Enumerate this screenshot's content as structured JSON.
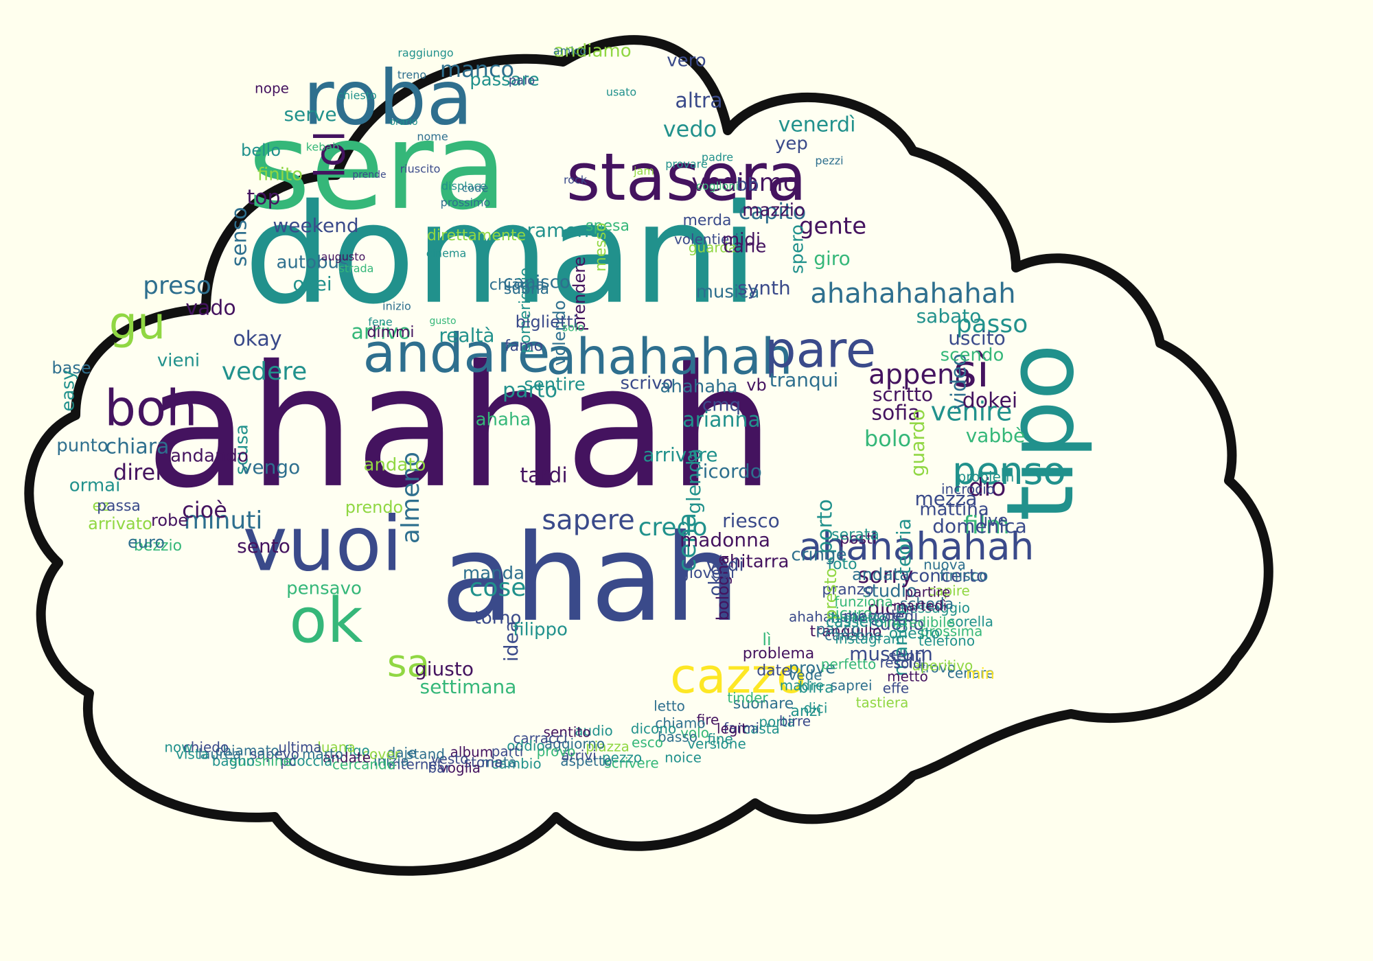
{
  "palette": {
    "background": "#ffffee",
    "outline": "#111111",
    "fill": "#fffff2",
    "d1": "#44135f",
    "d2": "#3a4a8a",
    "d3": "#2e6f8e",
    "d4": "#21918c",
    "d5": "#35b779",
    "d6": "#90d743",
    "d7": "#fde725"
  },
  "words": [
    {
      "text": "ahahah",
      "c": "d1"
    },
    {
      "text": "domani",
      "c": "d4"
    },
    {
      "text": "sera",
      "c": "d5"
    },
    {
      "text": "ahah",
      "c": "d2"
    },
    {
      "text": "tipo",
      "c": "d4"
    },
    {
      "text": "roba",
      "c": "d3"
    },
    {
      "text": "stasera",
      "c": "d1"
    },
    {
      "text": "andare",
      "c": "d3"
    },
    {
      "text": "ahahahah",
      "c": "d3"
    },
    {
      "text": "vuoi",
      "c": "d2"
    },
    {
      "text": "ok",
      "c": "d5"
    },
    {
      "text": "cazzo",
      "c": "d7"
    },
    {
      "text": "boh",
      "c": "d1"
    },
    {
      "text": "gu",
      "c": "d6"
    },
    {
      "text": "pare",
      "c": "d2"
    },
    {
      "text": "sì",
      "c": "d1"
    },
    {
      "text": "penso",
      "c": "d4"
    },
    {
      "text": "ahahahahah",
      "c": "d2"
    },
    {
      "text": "lol",
      "c": "d1"
    },
    {
      "text": "sa",
      "c": "d6"
    },
    {
      "text": "ahahahahahah",
      "c": "d3"
    },
    {
      "text": "appena",
      "c": "d1"
    },
    {
      "text": "vediamo",
      "c": "d1"
    },
    {
      "text": "capito",
      "c": "d3"
    },
    {
      "text": "veramente",
      "c": "d4"
    },
    {
      "text": "vedere",
      "c": "d4"
    },
    {
      "text": "manco",
      "c": "d3"
    },
    {
      "text": "preso",
      "c": "d3"
    },
    {
      "text": "chiara",
      "c": "d3"
    },
    {
      "text": "direi",
      "c": "d1"
    },
    {
      "text": "credo",
      "c": "d4"
    },
    {
      "text": "cena",
      "c": "d4"
    },
    {
      "text": "sapere",
      "c": "d2"
    },
    {
      "text": "almeno",
      "c": "d3"
    },
    {
      "text": "cose",
      "c": "d4"
    },
    {
      "text": "minuti",
      "c": "d3"
    },
    {
      "text": "venire",
      "c": "d4"
    },
    {
      "text": "passo",
      "c": "d4"
    },
    {
      "text": "dio",
      "c": "d1"
    },
    {
      "text": "film",
      "c": "d5"
    },
    {
      "text": "video",
      "c": "d3"
    },
    {
      "text": "scritto",
      "c": "d1"
    },
    {
      "text": "sofia",
      "c": "d1"
    },
    {
      "text": "bolo",
      "c": "d5"
    },
    {
      "text": "gente",
      "c": "d1"
    },
    {
      "text": "senso",
      "c": "d3"
    },
    {
      "text": "top",
      "c": "d1"
    },
    {
      "text": "okay",
      "c": "d2"
    },
    {
      "text": "vado",
      "c": "d1"
    },
    {
      "text": "cioè",
      "c": "d1"
    },
    {
      "text": "museum",
      "c": "d2"
    },
    {
      "text": "giusto",
      "c": "d1"
    },
    {
      "text": "settimana",
      "c": "d5"
    },
    {
      "text": "idea",
      "c": "d2"
    },
    {
      "text": "torno",
      "c": "d2"
    },
    {
      "text": "dico",
      "c": "d1"
    },
    {
      "text": "sorry",
      "c": "d1"
    },
    {
      "text": "teoria",
      "c": "d4"
    },
    {
      "text": "riesco",
      "c": "d2"
    },
    {
      "text": "madonna",
      "c": "d1"
    },
    {
      "text": "tardi",
      "c": "d1"
    },
    {
      "text": "ricordo",
      "c": "d3"
    },
    {
      "text": "arianna",
      "c": "d4"
    },
    {
      "text": "parto",
      "c": "d4"
    },
    {
      "text": "arrivo",
      "c": "d5"
    },
    {
      "text": "realtà",
      "c": "d4"
    },
    {
      "text": "capisco",
      "c": "d3"
    },
    {
      "text": "musica",
      "c": "d3"
    },
    {
      "text": "vedo",
      "c": "d4"
    },
    {
      "text": "altra",
      "c": "d2"
    },
    {
      "text": "venerdì",
      "c": "d4"
    },
    {
      "text": "yep",
      "c": "d2"
    },
    {
      "text": "mazzio",
      "c": "d1"
    },
    {
      "text": "passare",
      "c": "d4"
    },
    {
      "text": "vero",
      "c": "d2"
    },
    {
      "text": "andiamo",
      "c": "d6"
    },
    {
      "text": "serve",
      "c": "d4"
    },
    {
      "text": "weekend",
      "c": "d2"
    },
    {
      "text": "autobus",
      "c": "d3"
    },
    {
      "text": "okei",
      "c": "d4"
    },
    {
      "text": "sabato",
      "c": "d4"
    },
    {
      "text": "scendo",
      "c": "d5"
    },
    {
      "text": "uscito",
      "c": "d2"
    },
    {
      "text": "vabbè",
      "c": "d5"
    },
    {
      "text": "domenica",
      "c": "d2"
    },
    {
      "text": "mattina",
      "c": "d2"
    },
    {
      "text": "porto",
      "c": "d4"
    },
    {
      "text": "guardo",
      "c": "d6"
    },
    {
      "text": "tranqui",
      "c": "d3"
    },
    {
      "text": "sentire",
      "c": "d4"
    },
    {
      "text": "ahaha",
      "c": "d5"
    },
    {
      "text": "vieni",
      "c": "d4"
    },
    {
      "text": "base",
      "c": "d3"
    },
    {
      "text": "easy",
      "c": "d4"
    },
    {
      "text": "punto",
      "c": "d3"
    },
    {
      "text": "ormai",
      "c": "d4"
    },
    {
      "text": "finito",
      "c": "d6"
    },
    {
      "text": "bello",
      "c": "d4"
    },
    {
      "text": "nope",
      "c": "d1"
    },
    {
      "text": "giro",
      "c": "d5"
    },
    {
      "text": "spero",
      "c": "d4"
    },
    {
      "text": "synth",
      "c": "d2"
    },
    {
      "text": "pensavo",
      "c": "d5"
    },
    {
      "text": "sento",
      "c": "d1"
    },
    {
      "text": "scusa",
      "c": "d4"
    },
    {
      "text": "vengo",
      "c": "d3"
    },
    {
      "text": "andando",
      "c": "d1"
    },
    {
      "text": "concerto",
      "c": "d2"
    },
    {
      "text": "studio",
      "c": "d3"
    },
    {
      "text": "suono",
      "c": "d2"
    },
    {
      "text": "mando",
      "c": "d4"
    },
    {
      "text": "glenda",
      "c": "d4"
    },
    {
      "text": "arrivare",
      "c": "d4"
    },
    {
      "text": "chitarra",
      "c": "d1"
    },
    {
      "text": "vedi",
      "c": "d2"
    },
    {
      "text": "cringe",
      "c": "d3"
    },
    {
      "text": "mezza",
      "c": "d2"
    },
    {
      "text": "problem",
      "c": "d4"
    },
    {
      "text": "dokei",
      "c": "d1"
    },
    {
      "text": "live",
      "c": "d2"
    },
    {
      "text": "incrocio",
      "c": "d2"
    },
    {
      "text": "manda",
      "c": "d3"
    },
    {
      "text": "filippo",
      "c": "d4"
    },
    {
      "text": "prendere",
      "c": "d1"
    },
    {
      "text": "direttamente",
      "c": "d6"
    },
    {
      "text": "volendo",
      "c": "d3"
    },
    {
      "text": "pomeriggio",
      "c": "d4"
    },
    {
      "text": "biglietti",
      "c": "d2"
    },
    {
      "text": "suona",
      "c": "d3"
    },
    {
      "text": "dimmi",
      "c": "d1"
    },
    {
      "text": "famo",
      "c": "d2"
    },
    {
      "text": "chiama",
      "c": "d3"
    },
    {
      "text": "spesa",
      "c": "d5"
    },
    {
      "text": "messo",
      "c": "d6"
    },
    {
      "text": "guarda",
      "c": "d6"
    },
    {
      "text": "cane",
      "c": "d1"
    },
    {
      "text": "volentieri",
      "c": "d2"
    },
    {
      "text": "midi",
      "c": "d1"
    },
    {
      "text": "merda",
      "c": "d2"
    },
    {
      "text": "bb",
      "c": "d2"
    },
    {
      "text": "vb",
      "c": "d1"
    },
    {
      "text": "cmq",
      "c": "d2"
    },
    {
      "text": "scrivo",
      "c": "d2"
    },
    {
      "text": "ahahaha",
      "c": "d3"
    },
    {
      "text": "okok",
      "c": "d2"
    },
    {
      "text": "bologna",
      "c": "d1"
    },
    {
      "text": "andato",
      "c": "d6"
    },
    {
      "text": "prendo",
      "c": "d6"
    },
    {
      "text": "giovedì",
      "c": "d2"
    },
    {
      "text": "bezzio",
      "c": "d5"
    },
    {
      "text": "euro",
      "c": "d3"
    },
    {
      "text": "robe",
      "c": "d1"
    },
    {
      "text": "ez",
      "c": "d6"
    },
    {
      "text": "passa",
      "c": "d2"
    },
    {
      "text": "arrivato",
      "c": "d6"
    },
    {
      "text": "posti",
      "c": "d1"
    },
    {
      "text": "serata",
      "c": "d4"
    },
    {
      "text": "foto",
      "c": "d4"
    },
    {
      "text": "pranzo",
      "c": "d2"
    },
    {
      "text": "andata",
      "c": "d3"
    },
    {
      "text": "lì",
      "c": "d5"
    },
    {
      "text": "problema",
      "c": "d1"
    },
    {
      "text": "date",
      "c": "d2"
    },
    {
      "text": "prove",
      "c": "d3"
    },
    {
      "text": "voce",
      "c": "d2"
    },
    {
      "text": "ahahahaha",
      "c": "d2"
    },
    {
      "text": "sicuro",
      "c": "d5"
    },
    {
      "text": "tranquillo",
      "c": "d1"
    },
    {
      "text": "presto",
      "c": "d6"
    },
    {
      "text": "pacco",
      "c": "d3"
    },
    {
      "text": "senti",
      "c": "d2"
    },
    {
      "text": "telefono",
      "c": "d4"
    },
    {
      "text": "prossima",
      "c": "d5"
    },
    {
      "text": "sorella",
      "c": "d4"
    },
    {
      "text": "capire",
      "c": "d6"
    },
    {
      "text": "finisco",
      "c": "d3"
    },
    {
      "text": "nuova",
      "c": "d3"
    },
    {
      "text": "partire",
      "c": "d1"
    },
    {
      "text": "messaggio",
      "c": "d4"
    },
    {
      "text": "scheda",
      "c": "d3"
    },
    {
      "text": "incredibile",
      "c": "d5"
    },
    {
      "text": "martedì",
      "c": "d1"
    },
    {
      "text": "mercoledì",
      "c": "d2"
    },
    {
      "text": "cassero",
      "c": "d4"
    },
    {
      "text": "funziona",
      "c": "d5"
    },
    {
      "text": "biglietto",
      "c": "d4"
    },
    {
      "text": "canzone",
      "c": "d3"
    },
    {
      "text": "instagram",
      "c": "d4"
    },
    {
      "text": "trovo",
      "c": "d3"
    },
    {
      "text": "aperitivo",
      "c": "d6"
    },
    {
      "text": "cenare",
      "c": "d3"
    },
    {
      "text": "min",
      "c": "d7"
    },
    {
      "text": "onesto",
      "c": "d4"
    },
    {
      "text": "metto",
      "c": "d1"
    },
    {
      "text": "resci",
      "c": "d2"
    },
    {
      "text": "soldi",
      "c": "d2"
    },
    {
      "text": "effe",
      "c": "d2"
    },
    {
      "text": "tastiera",
      "c": "d6"
    },
    {
      "text": "saprei",
      "c": "d3"
    },
    {
      "text": "perfetto",
      "c": "d5"
    },
    {
      "text": "birra",
      "c": "d4"
    },
    {
      "text": "anzi",
      "c": "d4"
    },
    {
      "text": "dici",
      "c": "d4"
    },
    {
      "text": "madre",
      "c": "d4"
    },
    {
      "text": "vede",
      "c": "d3"
    },
    {
      "text": "suonare",
      "c": "d3"
    },
    {
      "text": "tinder",
      "c": "d5"
    },
    {
      "text": "porta",
      "c": "d4"
    },
    {
      "text": "birre",
      "c": "d2"
    },
    {
      "text": "casta",
      "c": "d4"
    },
    {
      "text": "farmi",
      "c": "d2"
    },
    {
      "text": "legit",
      "c": "d1"
    },
    {
      "text": "versione",
      "c": "d4"
    },
    {
      "text": "fine",
      "c": "d4"
    },
    {
      "text": "fire",
      "c": "d1"
    },
    {
      "text": "volo",
      "c": "d5"
    },
    {
      "text": "noice",
      "c": "d4"
    },
    {
      "text": "chiamo",
      "c": "d3"
    },
    {
      "text": "basso",
      "c": "d3"
    },
    {
      "text": "letto",
      "c": "d3"
    },
    {
      "text": "dicono",
      "c": "d4"
    },
    {
      "text": "esco",
      "c": "d5"
    },
    {
      "text": "scrivere",
      "c": "d5"
    },
    {
      "text": "pezzo",
      "c": "d4"
    },
    {
      "text": "piazza",
      "c": "d6"
    },
    {
      "text": "audio",
      "c": "d4"
    },
    {
      "text": "aspetto",
      "c": "d3"
    },
    {
      "text": "arrivi",
      "c": "d2"
    },
    {
      "text": "aggiorno",
      "c": "d3"
    },
    {
      "text": "sentito",
      "c": "d1"
    },
    {
      "text": "provo",
      "c": "d5"
    },
    {
      "text": "carracci",
      "c": "d2"
    },
    {
      "text": "oddio",
      "c": "d4"
    },
    {
      "text": "cambio",
      "c": "d4"
    },
    {
      "text": "parti",
      "c": "d2"
    },
    {
      "text": "metà",
      "c": "d3"
    },
    {
      "text": "storia",
      "c": "d2"
    },
    {
      "text": "album",
      "c": "d1"
    },
    {
      "text": "voglia",
      "c": "d1"
    },
    {
      "text": "vesto",
      "c": "d2"
    },
    {
      "text": "bar",
      "c": "d2"
    },
    {
      "text": "stand",
      "c": "d3"
    },
    {
      "text": "internet",
      "c": "d2"
    },
    {
      "text": "daje",
      "c": "d3"
    },
    {
      "text": "inizia",
      "c": "d3"
    },
    {
      "text": "cover",
      "c": "d6"
    },
    {
      "text": "cercando",
      "c": "d5"
    },
    {
      "text": "figo",
      "c": "d4"
    },
    {
      "text": "andate",
      "c": "d1"
    },
    {
      "text": "luana",
      "c": "d6"
    },
    {
      "text": "marto",
      "c": "d3"
    },
    {
      "text": "doccia",
      "c": "d4"
    },
    {
      "text": "ultima",
      "c": "d2"
    },
    {
      "text": "pc",
      "c": "d2"
    },
    {
      "text": "sapevo",
      "c": "d2"
    },
    {
      "text": "sunshine",
      "c": "d5"
    },
    {
      "text": "chiamato",
      "c": "d3"
    },
    {
      "text": "bagno",
      "c": "d4"
    },
    {
      "text": "laurea",
      "c": "d3"
    },
    {
      "text": "chiedo",
      "c": "d2"
    },
    {
      "text": "vista",
      "c": "d4"
    },
    {
      "text": "now",
      "c": "d4"
    },
    {
      "text": "raggiungo",
      "c": "d4"
    },
    {
      "text": "amico",
      "c": "d3"
    },
    {
      "text": "usato",
      "c": "d4"
    },
    {
      "text": "paio",
      "c": "d2"
    },
    {
      "text": "treno",
      "c": "d3"
    },
    {
      "text": "chiesto",
      "c": "d4"
    },
    {
      "text": "orario",
      "c": "d4"
    },
    {
      "text": "nome",
      "c": "d3"
    },
    {
      "text": "kebab",
      "c": "d5"
    },
    {
      "text": "prende",
      "c": "d2"
    },
    {
      "text": "riuscito",
      "c": "d2"
    },
    {
      "text": "displace",
      "c": "d4"
    },
    {
      "text": "prossimo",
      "c": "d3"
    },
    {
      "text": "code",
      "c": "d3"
    },
    {
      "text": "rock",
      "c": "d2"
    },
    {
      "text": "jam",
      "c": "d6"
    },
    {
      "text": "provare",
      "c": "d4"
    },
    {
      "text": "padre",
      "c": "d4"
    },
    {
      "text": "pezzi",
      "c": "d3"
    },
    {
      "text": "coglioni",
      "c": "d5"
    },
    {
      "text": "cinema",
      "c": "d4"
    },
    {
      "text": "augusto",
      "c": "d1"
    },
    {
      "text": "strada",
      "c": "d5"
    },
    {
      "text": "inizio",
      "c": "d3"
    },
    {
      "text": "fene",
      "c": "d4"
    },
    {
      "text": "gusto",
      "c": "d5"
    },
    {
      "text": "solo",
      "c": "d5"
    }
  ]
}
